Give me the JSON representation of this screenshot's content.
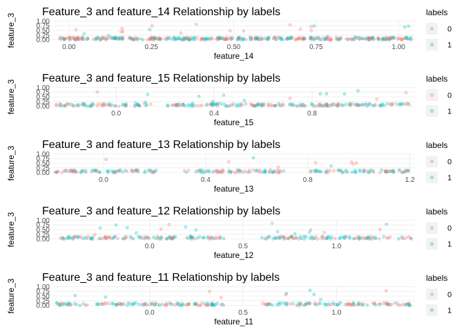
{
  "colors": {
    "label_0": "#F8766D",
    "label_1": "#00BFC4",
    "grid": "#ebebeb",
    "legend_key_bg": "#f2f2f2"
  },
  "chart_data": [
    {
      "type": "scatter",
      "title": "Feature_3 and  feature_14 Relationship by labels",
      "xlabel": "feature_14",
      "ylabel": "feature_3",
      "xlim": [
        -0.05,
        1.05
      ],
      "ylim": [
        -0.05,
        1.05
      ],
      "x_ticks": [
        0.0,
        0.25,
        0.5,
        0.75,
        1.0
      ],
      "x_tick_labels": [
        "0.00",
        "0.25",
        "0.50",
        "0.75",
        "1.00"
      ],
      "y_ticks": [
        0.0,
        0.25,
        0.5,
        0.75,
        1.0
      ],
      "y_tick_labels": [
        "0.00",
        "0.25",
        "0.50",
        "0.75",
        "1.00"
      ],
      "clusters": [
        [
          -0.04,
          0.06
        ],
        [
          0.07,
          0.17
        ],
        [
          0.18,
          0.28
        ],
        [
          0.29,
          0.39
        ],
        [
          0.4,
          0.5
        ],
        [
          0.51,
          0.61
        ],
        [
          0.62,
          0.72
        ],
        [
          0.73,
          0.83
        ],
        [
          0.84,
          0.94
        ],
        [
          0.95,
          1.04
        ]
      ],
      "grid": true,
      "legend": {
        "title": "labels",
        "entries": [
          "0",
          "1"
        ],
        "placement": "right"
      }
    },
    {
      "type": "scatter",
      "title": "Feature_3 and  feature_15 Relationship by labels",
      "xlabel": "feature_15",
      "ylabel": "feature_3",
      "xlim": [
        -0.26,
        1.22
      ],
      "ylim": [
        -0.05,
        1.05
      ],
      "x_ticks": [
        0.0,
        0.4,
        0.8
      ],
      "x_tick_labels": [
        "0.0",
        "0.4",
        "0.8"
      ],
      "y_ticks": [
        0.0,
        0.25,
        0.5,
        0.75,
        1.0
      ],
      "y_tick_labels": [
        "0.00",
        "0.25",
        "0.50",
        "0.75",
        "1.00"
      ],
      "clusters": [
        [
          -0.25,
          0.15
        ],
        [
          0.21,
          0.61
        ],
        [
          0.54,
          0.87
        ],
        [
          0.86,
          1.21
        ]
      ],
      "grid": true,
      "legend": {
        "title": "labels",
        "entries": [
          "0",
          "1"
        ],
        "placement": "right"
      }
    },
    {
      "type": "scatter",
      "title": "Feature_3 and  feature_13 Relationship by labels",
      "xlabel": "feature_13",
      "ylabel": "feature_3",
      "xlim": [
        -0.2,
        1.22
      ],
      "ylim": [
        -0.05,
        1.05
      ],
      "x_ticks": [
        0.0,
        0.4,
        0.8,
        1.2
      ],
      "x_tick_labels": [
        "0.0",
        "0.4",
        "0.8",
        "1.2"
      ],
      "y_ticks": [
        0.0,
        0.25,
        0.5,
        0.75,
        1.0
      ],
      "y_tick_labels": [
        "0.00",
        "0.25",
        "0.50",
        "0.75",
        "1.00"
      ],
      "clusters": [
        [
          -0.19,
          0.21
        ],
        [
          0.31,
          0.71
        ],
        [
          0.81,
          1.21
        ]
      ],
      "grid": true,
      "legend": {
        "title": "labels",
        "entries": [
          "0",
          "1"
        ],
        "placement": "right"
      }
    },
    {
      "type": "scatter",
      "title": "Feature_3 and  feature_12 Relationship by labels",
      "xlabel": "feature_12",
      "ylabel": "feature_3",
      "xlim": [
        -0.52,
        1.42
      ],
      "ylim": [
        -0.05,
        1.05
      ],
      "x_ticks": [
        0.0,
        0.5,
        1.0
      ],
      "x_tick_labels": [
        "0.0",
        "0.5",
        "1.0"
      ],
      "y_ticks": [
        0.0,
        0.25,
        0.5,
        0.75,
        1.0
      ],
      "y_tick_labels": [
        "0.00",
        "0.25",
        "0.50",
        "0.75",
        "1.00"
      ],
      "clusters": [
        [
          -0.5,
          0.4
        ],
        [
          0.6,
          1.4
        ]
      ],
      "grid": true,
      "legend": {
        "title": "labels",
        "entries": [
          "0",
          "1"
        ],
        "placement": "right"
      }
    },
    {
      "type": "scatter",
      "title": "Feature_3 and  feature_11 Relationship by labels",
      "xlabel": "feature_11",
      "ylabel": "feature_3",
      "xlim": [
        -0.52,
        1.42
      ],
      "ylim": [
        -0.05,
        1.05
      ],
      "x_ticks": [
        0.0,
        0.5,
        1.0
      ],
      "x_tick_labels": [
        "0.0",
        "0.5",
        "1.0"
      ],
      "y_ticks": [
        0.0,
        0.25,
        0.5,
        0.75,
        1.0
      ],
      "y_tick_labels": [
        "0.00",
        "0.25",
        "0.50",
        "0.75",
        "1.00"
      ],
      "clusters": [
        [
          -0.5,
          0.4
        ],
        [
          0.6,
          1.4
        ]
      ],
      "grid": true,
      "legend": {
        "title": "labels",
        "entries": [
          "0",
          "1"
        ],
        "placement": "right"
      }
    }
  ]
}
